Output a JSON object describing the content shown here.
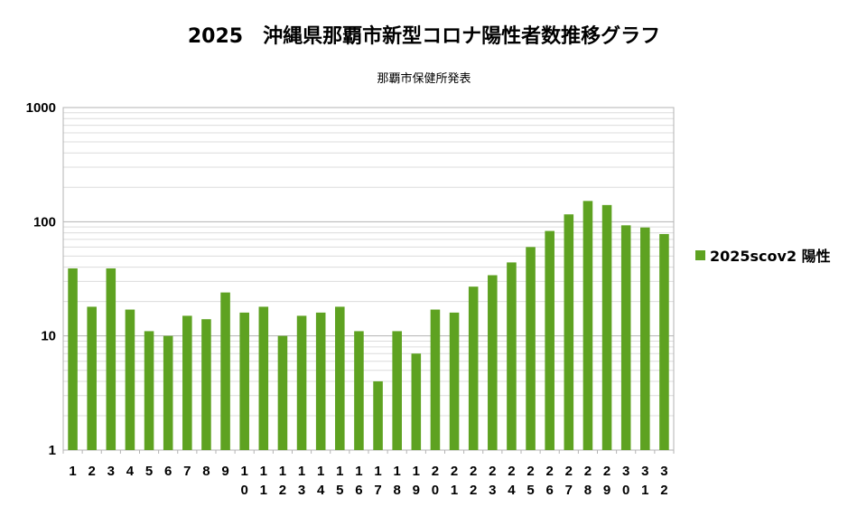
{
  "chart_data": {
    "type": "bar",
    "title": "2025　沖縄県那覇市新型コロナ陽性者数推移グラフ",
    "subtitle": "那覇市保健所発表",
    "yscale": "log",
    "ylim": [
      1,
      1000
    ],
    "yticks": [
      "1",
      "10",
      "100",
      "1000"
    ],
    "grid": true,
    "legend_position": "right",
    "bar_color": "#5ea221",
    "categories": [
      "1",
      "2",
      "3",
      "4",
      "5",
      "6",
      "7",
      "8",
      "9",
      "10",
      "11",
      "12",
      "13",
      "14",
      "15",
      "16",
      "17",
      "18",
      "19",
      "20",
      "21",
      "22",
      "23",
      "24",
      "25",
      "26",
      "27",
      "28",
      "29",
      "30",
      "31",
      "32"
    ],
    "series": [
      {
        "name": "2025scov2 陽性",
        "values": [
          39,
          18,
          39,
          17,
          11,
          10,
          15,
          14,
          24,
          16,
          18,
          10,
          15,
          16,
          18,
          11,
          4,
          11,
          7,
          17,
          16,
          27,
          34,
          44,
          60,
          83,
          116,
          152,
          140,
          93,
          89,
          78
        ]
      }
    ]
  }
}
